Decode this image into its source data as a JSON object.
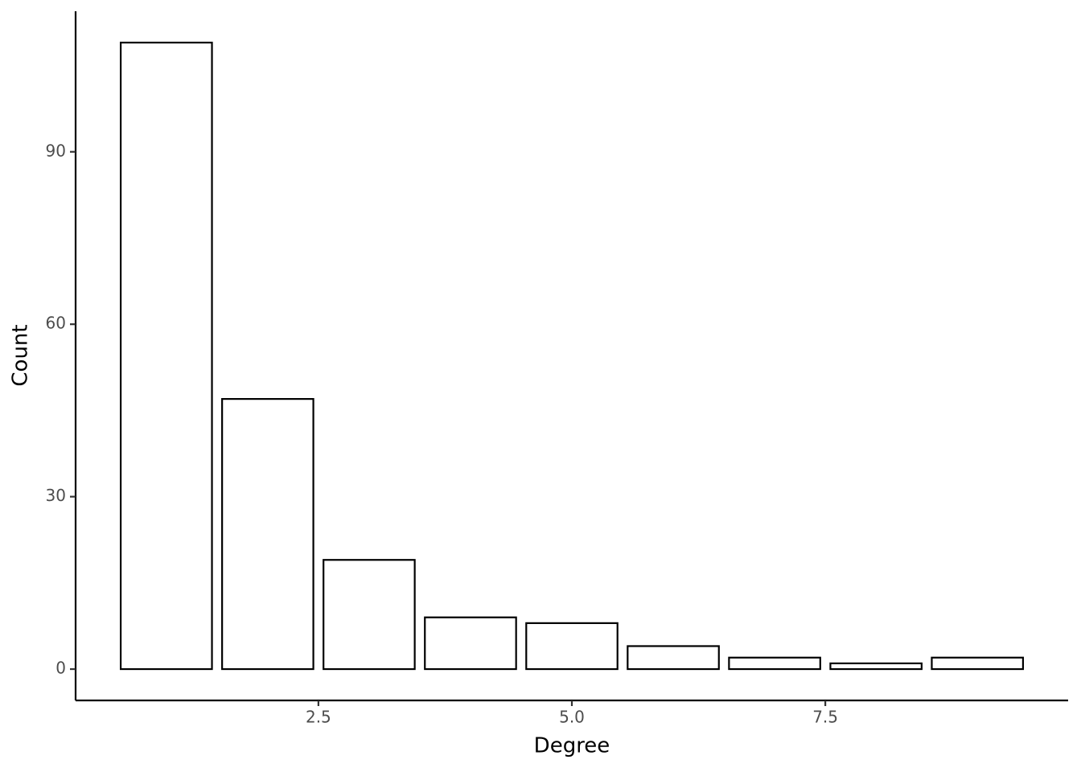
{
  "chart_data": {
    "type": "bar",
    "x_label": "Degree",
    "y_label": "Count",
    "x": [
      1,
      2,
      3,
      4,
      5,
      6,
      7,
      8,
      9
    ],
    "values": [
      109,
      47,
      19,
      9,
      8,
      4,
      2,
      1,
      2
    ],
    "color": "#ffffff",
    "edgecolor": "#000000",
    "xlim": [
      0.105,
      9.895
    ],
    "ylim": [
      -5.45,
      114.45
    ],
    "xticks": [
      2.5,
      {
        "value": 5,
        "label": "5.0"
      },
      7.5
    ],
    "yticks": [
      0,
      30,
      60,
      90
    ],
    "grid": false
  }
}
